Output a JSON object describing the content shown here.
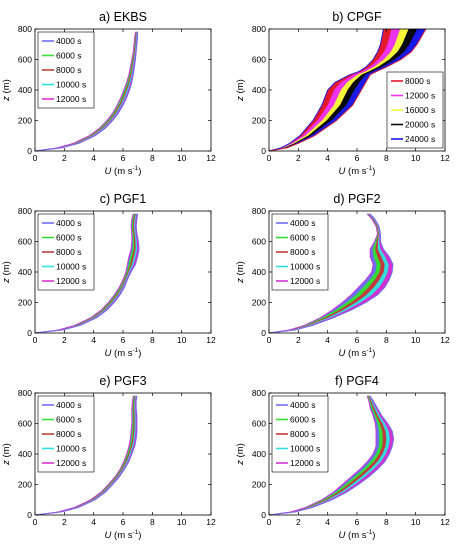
{
  "figure": {
    "shared": {
      "x_tick_labels": [
        "0",
        "2",
        "4",
        "6",
        "8",
        "10",
        "12"
      ],
      "y_tick_labels": [
        "0",
        "200",
        "400",
        "600",
        "800"
      ],
      "xlabel": "U",
      "xlabel_units": "(m s",
      "xlabel_exp": "-1",
      "xlabel_close": ")",
      "ylabel": "z",
      "ylabel_units": "(m)"
    }
  },
  "chart_data": [
    {
      "type": "area",
      "title": "a) EKBS",
      "xlim": [
        0,
        12
      ],
      "ylim": [
        0,
        800
      ],
      "legend": "top-left",
      "colors": [
        "#6e6ef0",
        "#33dd33",
        "#c23a3a",
        "#33dddd",
        "#d033d0"
      ],
      "legend_entries": [
        "4000 s",
        "6000 s",
        "8000 s",
        "10000 s",
        "12000 s"
      ],
      "envelope": {
        "z": [
          0,
          20,
          50,
          100,
          150,
          200,
          250,
          300,
          350,
          400,
          450,
          500,
          550,
          600,
          650,
          700,
          750,
          780
        ],
        "u_min": [
          0.0,
          1.5,
          2.6,
          3.7,
          4.4,
          4.9,
          5.3,
          5.6,
          5.85,
          6.05,
          6.25,
          6.4,
          6.5,
          6.6,
          6.7,
          6.75,
          6.8,
          6.85
        ],
        "u_max": [
          0.0,
          1.8,
          3.0,
          4.1,
          4.8,
          5.3,
          5.7,
          6.0,
          6.25,
          6.45,
          6.6,
          6.7,
          6.78,
          6.85,
          6.9,
          6.95,
          7.0,
          7.0
        ]
      }
    },
    {
      "type": "area",
      "title": "b) CPGF",
      "xlim": [
        0,
        12
      ],
      "ylim": [
        0,
        800
      ],
      "legend": "bottom-right",
      "colors": [
        "#e21a2a",
        "#ee33ee",
        "#f5f53a",
        "#0a0a0a",
        "#1a1ae6"
      ],
      "legend_entries": [
        "8000 s",
        "12000 s",
        "16000 s",
        "20000 s",
        "24000 s"
      ],
      "envelope": {
        "z": [
          0,
          20,
          50,
          100,
          200,
          300,
          400,
          450,
          500,
          520,
          550,
          600,
          650,
          700,
          750,
          800
        ],
        "u_min": [
          0.0,
          0.8,
          1.4,
          2.1,
          3.0,
          3.6,
          4.0,
          4.5,
          5.5,
          6.1,
          6.6,
          7.1,
          7.4,
          7.6,
          7.7,
          7.8
        ],
        "u_max": [
          0.0,
          1.2,
          2.0,
          3.1,
          4.6,
          5.7,
          6.3,
          6.6,
          6.9,
          7.3,
          8.0,
          9.0,
          9.7,
          10.1,
          10.4,
          10.7
        ]
      }
    },
    {
      "type": "area",
      "title": "c) PGF1",
      "xlim": [
        0,
        12
      ],
      "ylim": [
        0,
        800
      ],
      "legend": "top-left",
      "colors": [
        "#6e6ef0",
        "#33dd33",
        "#c23a3a",
        "#33dddd",
        "#d033d0"
      ],
      "legend_entries": [
        "4000 s",
        "6000 s",
        "8000 s",
        "10000 s",
        "12000 s"
      ],
      "envelope": {
        "z": [
          0,
          20,
          50,
          100,
          150,
          200,
          250,
          300,
          350,
          400,
          450,
          500,
          550,
          600,
          650,
          700,
          750,
          780
        ],
        "u_min": [
          0.0,
          1.6,
          2.7,
          3.8,
          4.5,
          5.0,
          5.4,
          5.75,
          6.0,
          6.2,
          6.3,
          6.4,
          6.55,
          6.6,
          6.6,
          6.55,
          6.6,
          6.7
        ],
        "u_max": [
          0.0,
          1.9,
          3.1,
          4.2,
          4.9,
          5.4,
          5.8,
          6.1,
          6.3,
          6.55,
          6.85,
          7.0,
          7.1,
          7.05,
          6.95,
          6.9,
          6.95,
          7.0
        ]
      }
    },
    {
      "type": "area",
      "title": "d) PGF2",
      "xlim": [
        0,
        12
      ],
      "ylim": [
        0,
        800
      ],
      "legend": "top-left",
      "colors": [
        "#6e6ef0",
        "#33dd33",
        "#c23a3a",
        "#33dddd",
        "#d033d0"
      ],
      "legend_entries": [
        "4000 s",
        "6000 s",
        "8000 s",
        "10000 s",
        "12000 s"
      ],
      "envelope": {
        "z": [
          0,
          20,
          50,
          100,
          150,
          200,
          250,
          300,
          350,
          400,
          450,
          500,
          550,
          600,
          650,
          700,
          750,
          780
        ],
        "u_min": [
          0.0,
          1.4,
          2.4,
          3.5,
          4.3,
          5.0,
          5.6,
          6.1,
          6.6,
          7.0,
          7.1,
          6.9,
          6.9,
          7.2,
          7.4,
          7.3,
          7.0,
          6.7
        ],
        "u_max": [
          0.0,
          1.8,
          3.0,
          4.4,
          5.6,
          6.6,
          7.4,
          7.9,
          8.2,
          8.4,
          8.45,
          8.2,
          7.8,
          7.6,
          7.6,
          7.5,
          7.2,
          6.9
        ]
      }
    },
    {
      "type": "area",
      "title": "e) PGF3",
      "xlim": [
        0,
        12
      ],
      "ylim": [
        0,
        800
      ],
      "legend": "top-left",
      "colors": [
        "#6e6ef0",
        "#33dd33",
        "#c23a3a",
        "#33dddd",
        "#d033d0"
      ],
      "legend_entries": [
        "4000 s",
        "6000 s",
        "8000 s",
        "10000 s",
        "12000 s"
      ],
      "envelope": {
        "z": [
          0,
          20,
          50,
          100,
          150,
          200,
          250,
          300,
          350,
          400,
          450,
          500,
          550,
          600,
          650,
          700,
          750,
          780
        ],
        "u_min": [
          0.0,
          1.6,
          2.7,
          3.8,
          4.5,
          5.0,
          5.45,
          5.8,
          6.05,
          6.25,
          6.4,
          6.5,
          6.55,
          6.6,
          6.6,
          6.6,
          6.65,
          6.7
        ],
        "u_max": [
          0.0,
          1.8,
          3.0,
          4.1,
          4.8,
          5.3,
          5.75,
          6.1,
          6.4,
          6.6,
          6.8,
          6.9,
          6.95,
          6.95,
          6.95,
          6.9,
          6.9,
          6.95
        ]
      }
    },
    {
      "type": "area",
      "title": "f) PGF4",
      "xlim": [
        0,
        12
      ],
      "ylim": [
        0,
        800
      ],
      "legend": "top-left",
      "colors": [
        "#6e6ef0",
        "#33dd33",
        "#c23a3a",
        "#33dddd",
        "#d033d0"
      ],
      "legend_entries": [
        "4000 s",
        "6000 s",
        "8000 s",
        "10000 s",
        "12000 s"
      ],
      "envelope": {
        "z": [
          0,
          20,
          50,
          100,
          150,
          200,
          250,
          300,
          350,
          400,
          450,
          500,
          550,
          600,
          650,
          700,
          750,
          780
        ],
        "u_min": [
          0.0,
          1.5,
          2.5,
          3.6,
          4.4,
          5.0,
          5.6,
          6.2,
          6.7,
          7.1,
          7.3,
          7.3,
          7.3,
          7.25,
          7.1,
          6.9,
          6.8,
          6.7
        ],
        "u_max": [
          0.0,
          1.8,
          3.0,
          4.3,
          5.3,
          6.1,
          6.8,
          7.4,
          7.9,
          8.2,
          8.4,
          8.5,
          8.4,
          8.1,
          7.7,
          7.4,
          7.1,
          6.9
        ]
      }
    }
  ]
}
